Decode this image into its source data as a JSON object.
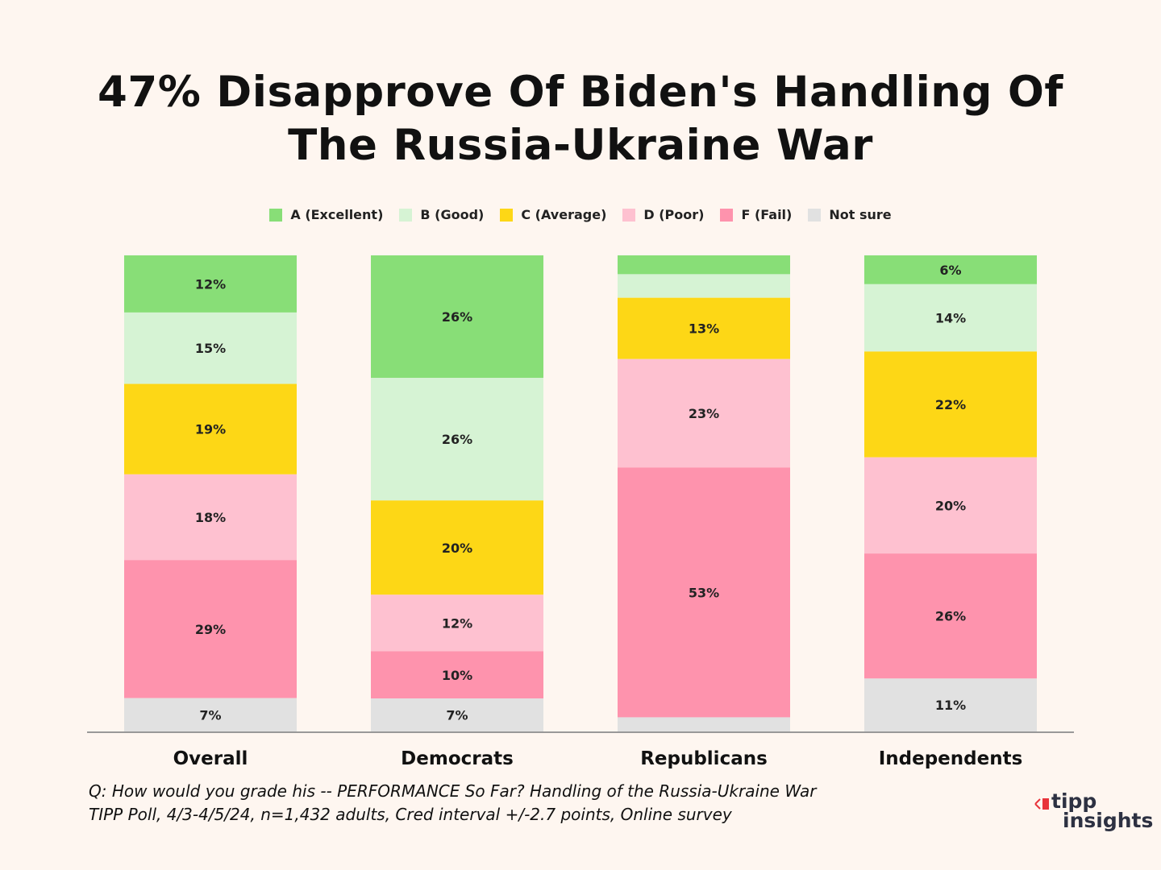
{
  "title": "47% Disapprove Of Biden's Handling Of The Russia-Ukraine War",
  "colors": {
    "background": "#fef6f0",
    "A (Excellent)": "#88de77",
    "B (Good)": "#d6f3d4",
    "C (Average)": "#fdd716",
    "D (Poor)": "#fec1d0",
    "F (Fail)": "#fe93ad",
    "Not sure": "#e1e1e1",
    "axis": "#999999",
    "logo_accent": "#e8343b",
    "logo_text": "#2d3142"
  },
  "legend": [
    "A (Excellent)",
    "B (Good)",
    "C (Average)",
    "D (Poor)",
    "F (Fail)",
    "Not sure"
  ],
  "chart_data": {
    "type": "bar",
    "stacked": true,
    "orientation": "vertical",
    "title": "47% Disapprove Of Biden's Handling Of The Russia-Ukraine War",
    "categories": [
      "Overall",
      "Democrats",
      "Republicans",
      "Independents"
    ],
    "series": [
      {
        "name": "A (Excellent)",
        "values": [
          12,
          26,
          4,
          6
        ],
        "labels": [
          "12%",
          "26%",
          "",
          "6%"
        ]
      },
      {
        "name": "B (Good)",
        "values": [
          15,
          26,
          5,
          14
        ],
        "labels": [
          "15%",
          "26%",
          "",
          "14%"
        ]
      },
      {
        "name": "C (Average)",
        "values": [
          19,
          20,
          13,
          22
        ],
        "labels": [
          "19%",
          "20%",
          "13%",
          "22%"
        ]
      },
      {
        "name": "D (Poor)",
        "values": [
          18,
          12,
          23,
          20
        ],
        "labels": [
          "18%",
          "12%",
          "23%",
          "20%"
        ]
      },
      {
        "name": "F (Fail)",
        "values": [
          29,
          10,
          53,
          26
        ],
        "labels": [
          "29%",
          "10%",
          "53%",
          "26%"
        ]
      },
      {
        "name": "Not sure",
        "values": [
          7,
          7,
          3,
          11
        ],
        "labels": [
          "7%",
          "7%",
          "",
          "11%"
        ]
      }
    ],
    "xlabel": "",
    "ylabel": "",
    "ylim": [
      0,
      100
    ],
    "grid": false,
    "legend_position": "top"
  },
  "footnote": {
    "line1": "Q:  How would you grade his -- PERFORMANCE So Far?  Handling of the Russia-Ukraine War",
    "line2": "TIPP Poll, 4/3-4/5/24, n=1,432 adults, Cred interval +/-2.7 points, Online survey"
  },
  "logo": {
    "line1": "tipp",
    "line2": "insights"
  }
}
